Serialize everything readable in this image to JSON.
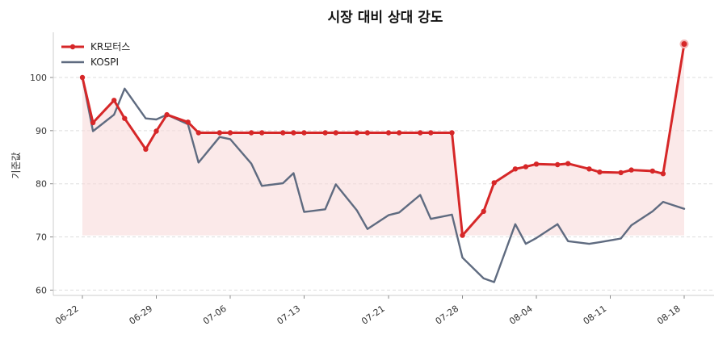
{
  "chart_data": {
    "type": "line",
    "title": "시장 대비 상대 강도",
    "xlabel": "",
    "ylabel": "기준값",
    "ylim": [
      59,
      108.5
    ],
    "yticks": [
      60,
      70,
      80,
      90,
      100
    ],
    "x": [
      "06-22",
      "06-23",
      "06-24",
      "06-25",
      "06-26",
      "06-27",
      "06-28",
      "06-29",
      "06-30",
      "07-01",
      "07-02",
      "07-03",
      "07-04",
      "07-05",
      "07-06",
      "07-07",
      "07-08",
      "07-09",
      "07-10",
      "07-11",
      "07-12",
      "07-13",
      "07-14",
      "07-15",
      "07-16",
      "07-17",
      "07-18",
      "07-19",
      "07-20",
      "07-21",
      "07-22",
      "07-23",
      "07-24",
      "07-25",
      "07-26",
      "07-27",
      "07-28",
      "07-29",
      "07-30",
      "07-31",
      "08-01",
      "08-02",
      "08-03",
      "08-04",
      "08-05",
      "08-06",
      "08-07",
      "08-08",
      "08-09",
      "08-10",
      "08-11",
      "08-12",
      "08-13",
      "08-14",
      "08-15",
      "08-16",
      "08-17",
      "08-18"
    ],
    "xticks": [
      "06-22",
      "06-29",
      "07-06",
      "07-13",
      "07-21",
      "07-28",
      "08-04",
      "08-11",
      "08-18"
    ],
    "xtick_index": [
      0,
      7,
      14,
      21,
      29,
      36,
      43,
      50,
      57
    ],
    "series": [
      {
        "name": "KR모터스",
        "color": "#d62728",
        "markers": true,
        "points": [
          [
            0,
            100
          ],
          [
            1,
            91.5
          ],
          [
            3,
            95.7
          ],
          [
            4,
            92.3
          ],
          [
            6,
            86.5
          ],
          [
            7,
            89.9
          ],
          [
            8,
            93
          ],
          [
            10,
            91.6
          ],
          [
            11,
            89.6
          ],
          [
            13,
            89.6
          ],
          [
            14,
            89.6
          ],
          [
            16,
            89.6
          ],
          [
            17,
            89.6
          ],
          [
            19,
            89.6
          ],
          [
            20,
            89.6
          ],
          [
            21,
            89.6
          ],
          [
            23,
            89.6
          ],
          [
            24,
            89.6
          ],
          [
            26,
            89.6
          ],
          [
            27,
            89.6
          ],
          [
            29,
            89.6
          ],
          [
            30,
            89.6
          ],
          [
            32,
            89.6
          ],
          [
            33,
            89.6
          ],
          [
            35,
            89.6
          ],
          [
            36,
            70.3
          ],
          [
            38,
            74.8
          ],
          [
            39,
            80.2
          ],
          [
            41,
            82.8
          ],
          [
            42,
            83.2
          ],
          [
            43,
            83.7
          ],
          [
            45,
            83.6
          ],
          [
            46,
            83.8
          ],
          [
            48,
            82.8
          ],
          [
            49,
            82.2
          ],
          [
            51,
            82.1
          ],
          [
            52,
            82.6
          ],
          [
            54,
            82.4
          ],
          [
            55,
            81.9
          ],
          [
            57,
            106.3
          ]
        ]
      },
      {
        "name": "KOSPI",
        "color": "#5f6b80",
        "markers": false,
        "points": [
          [
            0,
            100
          ],
          [
            1,
            89.9
          ],
          [
            3,
            93
          ],
          [
            4,
            97.9
          ],
          [
            6,
            92.3
          ],
          [
            7,
            92.1
          ],
          [
            8,
            93
          ],
          [
            10,
            91.2
          ],
          [
            11,
            84
          ],
          [
            13,
            88.8
          ],
          [
            14,
            88.4
          ],
          [
            16,
            83.8
          ],
          [
            17,
            79.6
          ],
          [
            19,
            80.1
          ],
          [
            20,
            82
          ],
          [
            21,
            74.7
          ],
          [
            23,
            75.2
          ],
          [
            24,
            79.9
          ],
          [
            26,
            75
          ],
          [
            27,
            71.5
          ],
          [
            29,
            74.1
          ],
          [
            30,
            74.6
          ],
          [
            32,
            77.9
          ],
          [
            33,
            73.4
          ],
          [
            35,
            74.2
          ],
          [
            36,
            66.1
          ],
          [
            38,
            62.2
          ],
          [
            39,
            61.5
          ],
          [
            41,
            72.4
          ],
          [
            42,
            68.7
          ],
          [
            43,
            69.8
          ],
          [
            45,
            72.4
          ],
          [
            46,
            69.2
          ],
          [
            48,
            68.7
          ],
          [
            49,
            69
          ],
          [
            51,
            69.7
          ],
          [
            52,
            72.2
          ],
          [
            54,
            74.8
          ],
          [
            55,
            76.6
          ],
          [
            57,
            75.3
          ]
        ]
      }
    ],
    "fill": {
      "between_series": "KR모터스",
      "baseline": 70.3,
      "color": "#f8d7d7"
    },
    "grid": "y-dashed",
    "legend": "top-left"
  }
}
